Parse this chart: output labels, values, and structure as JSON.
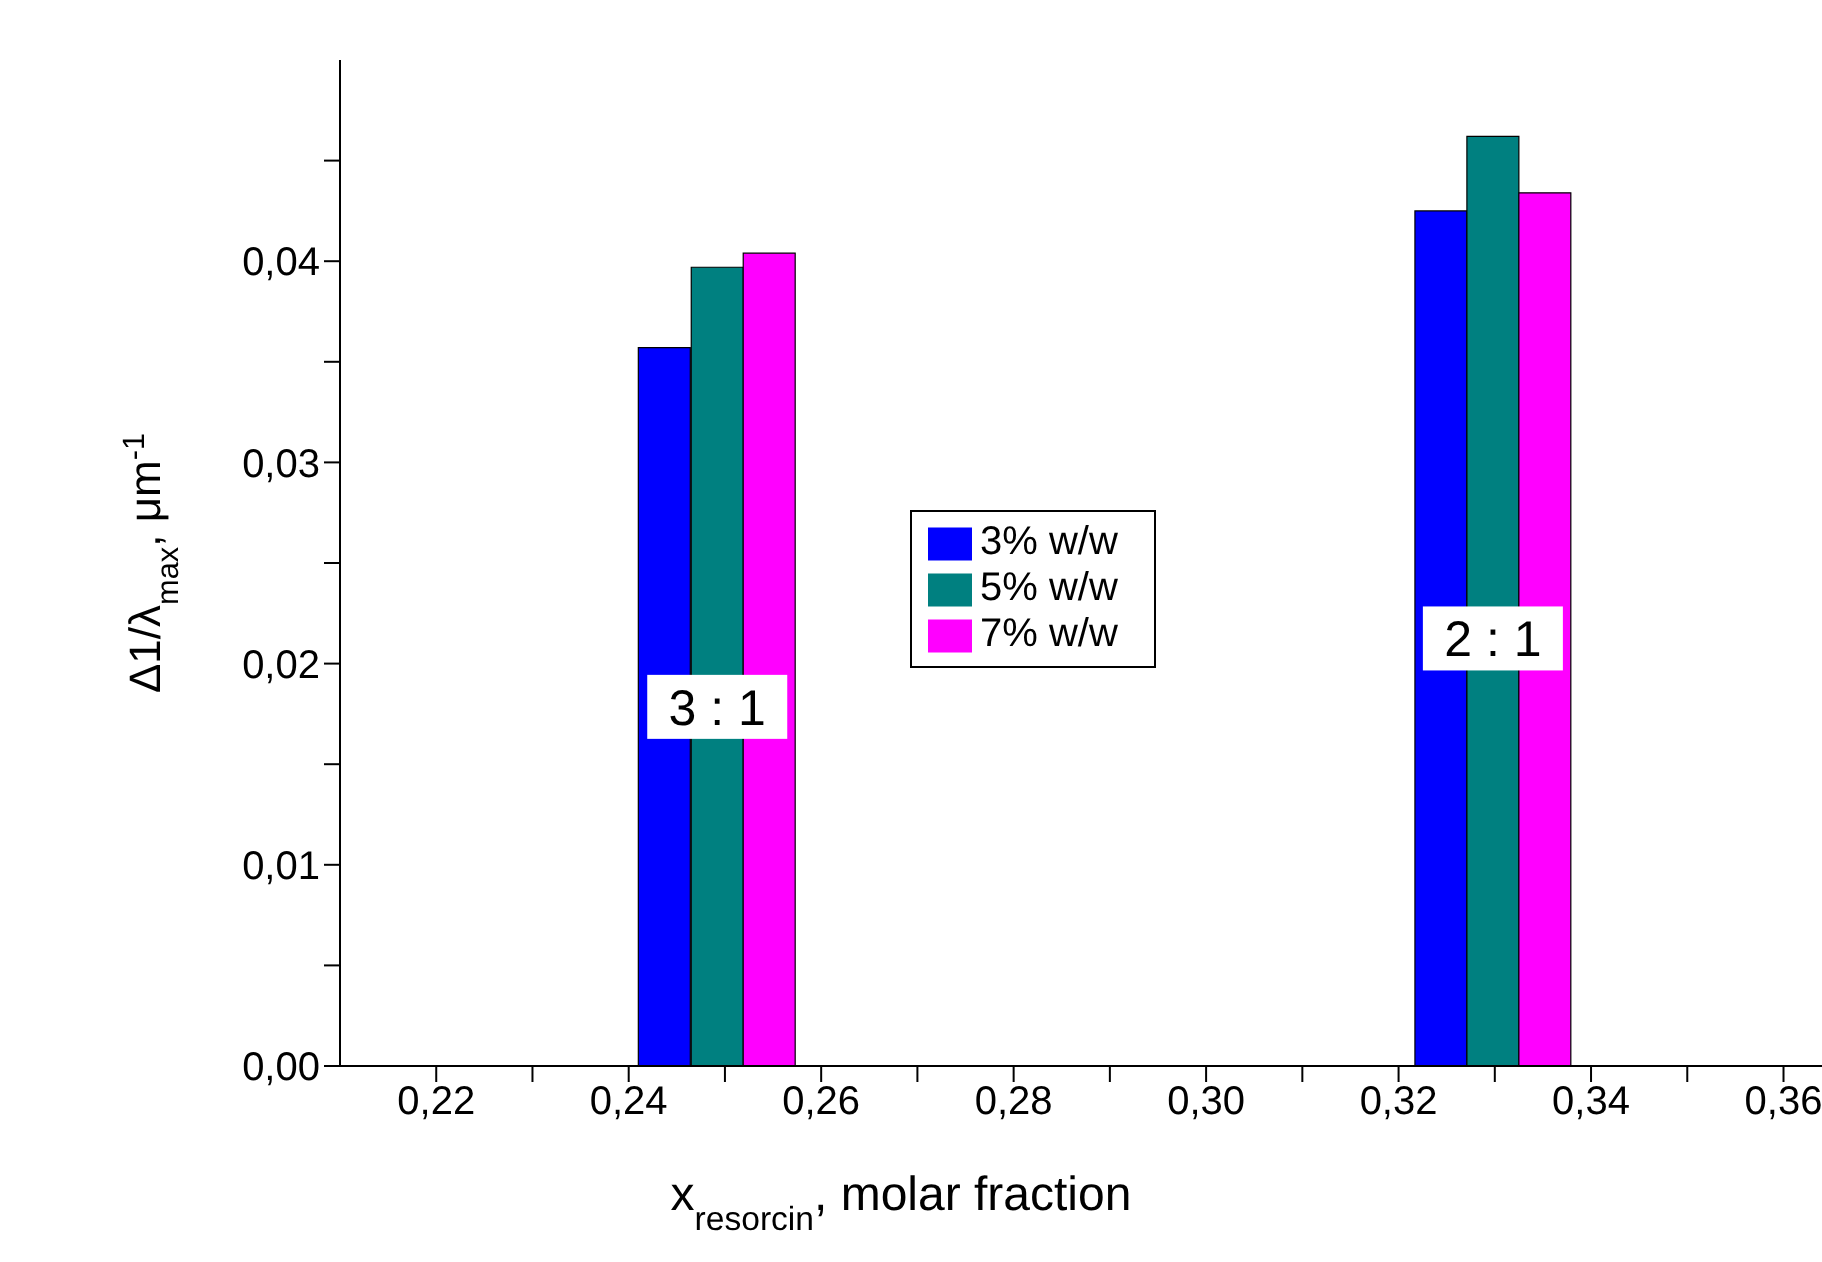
{
  "chart_data": {
    "type": "bar",
    "xlabel": "x$_{resorcin}$, molar fraction",
    "ylabel": "Δ1/λ$_{max}$, μm$^{-1}$",
    "series": [
      {
        "name": "3% w/w",
        "color": "#0000ff",
        "x": [
          0.2437,
          0.3244
        ],
        "values": [
          0.0357,
          0.0425
        ]
      },
      {
        "name": "5% w/w",
        "color": "#008080",
        "x": [
          0.2492,
          0.3298
        ],
        "values": [
          0.0397,
          0.0462
        ]
      },
      {
        "name": "7% w/w",
        "color": "#ff00ff",
        "x": [
          0.2546,
          0.3352
        ],
        "values": [
          0.0404,
          0.0434
        ]
      }
    ],
    "xlim": [
      0.21,
      0.364
    ],
    "xticks": [
      {
        "value": 0.22,
        "label": "0,22"
      },
      {
        "value": 0.23,
        "label": null
      },
      {
        "value": 0.24,
        "label": "0,24"
      },
      {
        "value": 0.25,
        "label": null
      },
      {
        "value": 0.26,
        "label": "0,26"
      },
      {
        "value": 0.27,
        "label": null
      },
      {
        "value": 0.28,
        "label": "0,28"
      },
      {
        "value": 0.29,
        "label": null
      },
      {
        "value": 0.3,
        "label": "0,30"
      },
      {
        "value": 0.31,
        "label": null
      },
      {
        "value": 0.32,
        "label": "0,32"
      },
      {
        "value": 0.33,
        "label": null
      },
      {
        "value": 0.34,
        "label": "0,34"
      },
      {
        "value": 0.35,
        "label": null
      },
      {
        "value": 0.36,
        "label": "0,36"
      }
    ],
    "ylim": [
      0,
      0.05
    ],
    "yticks": [
      {
        "value": 0,
        "label": "0,00"
      },
      {
        "value": 0.005,
        "label": null
      },
      {
        "value": 0.01,
        "label": "0,01"
      },
      {
        "value": 0.015,
        "label": null
      },
      {
        "value": 0.02,
        "label": "0,02"
      },
      {
        "value": 0.025,
        "label": null
      },
      {
        "value": 0.03,
        "label": "0,03"
      },
      {
        "value": 0.035,
        "label": null
      },
      {
        "value": 0.04,
        "label": "0,04"
      },
      {
        "value": 0.045,
        "label": null
      }
    ],
    "annotations": [
      "3 : 1",
      "2 : 1"
    ],
    "legend": "center",
    "grid": false
  }
}
